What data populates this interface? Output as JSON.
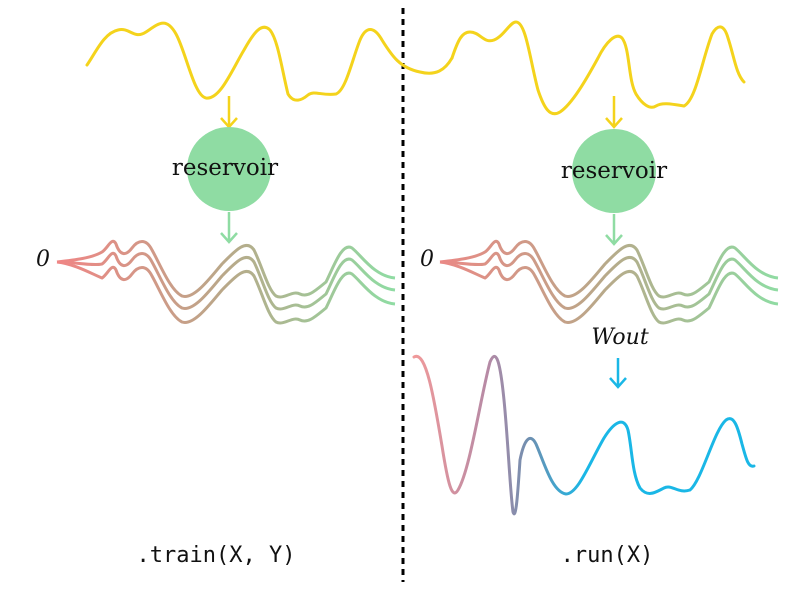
{
  "panels": {
    "left": {
      "node_label": "reservoir",
      "zero_label": "0",
      "caption": ".train(X, Y)"
    },
    "right": {
      "node_label": "reservoir",
      "zero_label": "0",
      "weight_label": "Wout",
      "caption": ".run(X)"
    }
  },
  "colors": {
    "input_signal": "#f4d31c",
    "reservoir_node": "#8fdca3",
    "state_start": "#f08585",
    "state_end": "#8fdca3",
    "output_start": "#f29a9a",
    "output_end": "#1ab7e6",
    "readout_arrow": "#1ab7e6",
    "divider": "#000000"
  },
  "icons": {
    "arrow": "arrow-down-icon"
  }
}
